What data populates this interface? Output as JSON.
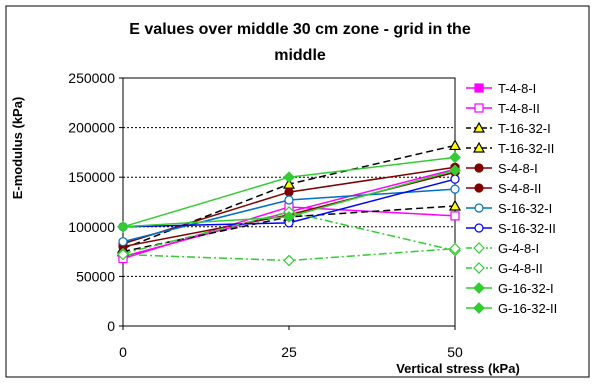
{
  "chart_data": {
    "type": "line",
    "title_lines": [
      "E values over middle 30 cm zone - grid in the",
      "middle"
    ],
    "xlabel": "Vertical stress (kPa)",
    "ylabel": "E-modulus (kPa)",
    "x": [
      0,
      25,
      50
    ],
    "x_ticks": [
      "0",
      "25",
      "50"
    ],
    "y_ticks": [
      "0",
      "50000",
      "100000",
      "150000",
      "200000",
      "250000"
    ],
    "ylim": [
      0,
      250000
    ],
    "grid": "horizontal dashed",
    "legend_position": "right",
    "series": [
      {
        "name": "T-4-8-I",
        "values": [
          70000,
          115000,
          158000
        ],
        "color": "#ff00ff",
        "dash": "solid",
        "marker": "square-filled"
      },
      {
        "name": "T-4-8-II",
        "values": [
          68000,
          120000,
          111000
        ],
        "color": "#ff00ff",
        "dash": "solid",
        "marker": "square-open"
      },
      {
        "name": "T-16-32-I",
        "values": [
          78000,
          143000,
          182000
        ],
        "color": "#000000",
        "dash": "dash",
        "marker": "triangle-open"
      },
      {
        "name": "T-16-32-II",
        "values": [
          75000,
          110000,
          121000
        ],
        "color": "#000000",
        "dash": "dash",
        "marker": "triangle-open"
      },
      {
        "name": "S-4-8-I",
        "values": [
          83000,
          135000,
          160000
        ],
        "color": "#800000",
        "dash": "solid",
        "marker": "circle-filled"
      },
      {
        "name": "S-4-8-II",
        "values": [
          80000,
          112000,
          155000
        ],
        "color": "#800000",
        "dash": "solid",
        "marker": "circle-filled"
      },
      {
        "name": "S-16-32-I",
        "values": [
          85000,
          127000,
          138000
        ],
        "color": "#0070c0",
        "dash": "solid",
        "marker": "circle-open"
      },
      {
        "name": "S-16-32-II",
        "values": [
          100000,
          104000,
          148000
        ],
        "color": "#0000ff",
        "dash": "solid",
        "marker": "circle-open"
      },
      {
        "name": "G-4-8-I",
        "values": [
          73000,
          115000,
          76000
        ],
        "color": "#33cc33",
        "dash": "dashdot",
        "marker": "diamond-open"
      },
      {
        "name": "G-4-8-II",
        "values": [
          72000,
          66000,
          78000
        ],
        "color": "#33cc33",
        "dash": "dashdot",
        "marker": "diamond-open"
      },
      {
        "name": "G-16-32-I",
        "values": [
          100000,
          150000,
          170000
        ],
        "color": "#33cc33",
        "dash": "solid",
        "marker": "diamond-filled"
      },
      {
        "name": "G-16-32-II",
        "values": [
          100000,
          110000,
          157000
        ],
        "color": "#33cc33",
        "dash": "solid",
        "marker": "diamond-filled"
      }
    ]
  }
}
